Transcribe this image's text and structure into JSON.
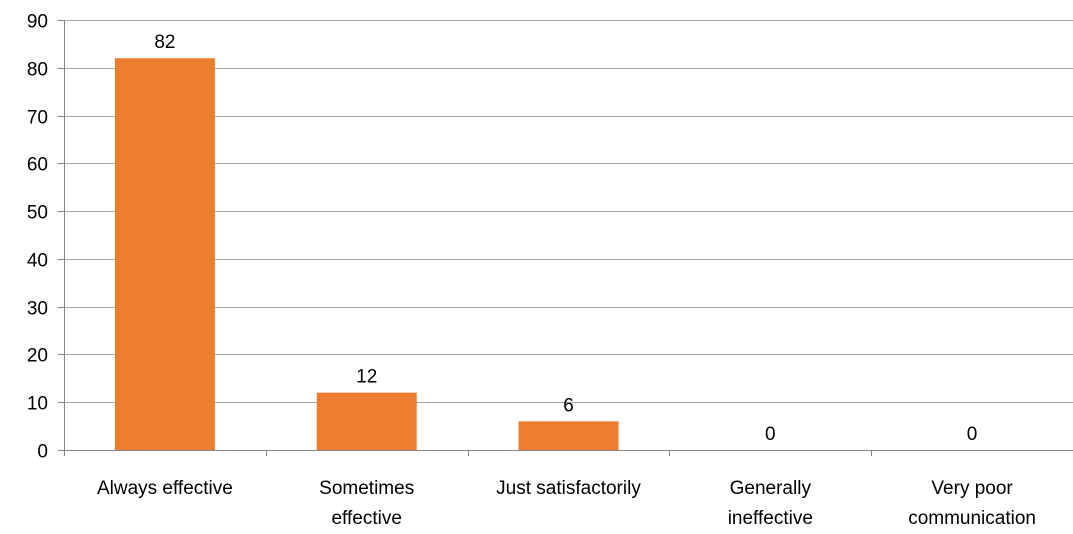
{
  "chart_data": {
    "type": "bar",
    "title": "",
    "xlabel": "",
    "ylabel": "",
    "categories": [
      [
        "Always effective"
      ],
      [
        "Sometimes",
        "effective"
      ],
      [
        "Just satisfactorily"
      ],
      [
        "Generally",
        "ineffective"
      ],
      [
        "Very poor",
        "communication"
      ]
    ],
    "values": [
      82,
      12,
      6,
      0,
      0
    ],
    "data_labels": [
      "82",
      "12",
      "6",
      "0",
      "0"
    ],
    "ylim": [
      0,
      90
    ],
    "yticks": [
      0,
      10,
      20,
      30,
      40,
      50,
      60,
      70,
      80,
      90
    ],
    "grid": true,
    "legend": "none",
    "bar_color": "#ED7D31",
    "grid_color": "#A6A6A6",
    "axis_color": "#868686"
  }
}
